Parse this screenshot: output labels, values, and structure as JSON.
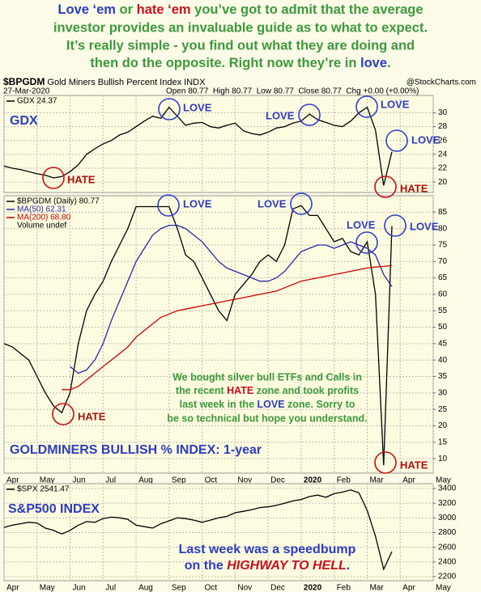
{
  "header": {
    "lines": [
      [
        "Love ‘em",
        " or ",
        "hate ‘em",
        " you’ve got to admit that the average"
      ],
      [
        "investor provides an invaluable guide as to what to expect."
      ],
      [
        "It’s really simple - you find out what they are doing and"
      ],
      [
        "then do the opposite. Right now they’re in ",
        "love",
        "."
      ]
    ]
  },
  "info": {
    "symbol": "$BPGDM",
    "name": "Gold Miners Bullish Percent Index INDX",
    "date": "27-Mar-2020",
    "quote": "Open 80.77  High 80.77  Low 80.77  Close 80.77  Chg +0.00 (+0.00%)",
    "source": "@StockCharts.com"
  },
  "chart_data": [
    {
      "type": "line",
      "categories": [
        "Apr",
        null,
        null,
        null,
        "May",
        null,
        null,
        null,
        "Jun",
        null,
        null,
        null,
        "Jul",
        null,
        null,
        null,
        "Aug",
        null,
        null,
        null,
        "Sep",
        null,
        null,
        null,
        "Oct",
        null,
        null,
        null,
        "Nov",
        null,
        null,
        null,
        "Dec",
        null,
        null,
        null,
        "2020",
        null,
        null,
        null,
        "Feb",
        null,
        null,
        null,
        "Mar",
        null,
        null,
        null,
        "Apr",
        null,
        null,
        null,
        "May"
      ],
      "series": [
        {
          "name": "GDX 24.37",
          "color": "#000000",
          "values": [
            22.3,
            22.0,
            21.8,
            21.5,
            21.2,
            21.0,
            20.6,
            20.8,
            21.5,
            22.5,
            24.0,
            24.8,
            25.5,
            26.0,
            26.8,
            27.2,
            28.0,
            28.8,
            29.5,
            29.2,
            30.8,
            29.5,
            28.2,
            28.5,
            28.6,
            28.0,
            27.8,
            28.2,
            28.5,
            27.4,
            27.0,
            26.8,
            27.2,
            27.8,
            28.0,
            28.5,
            28.8,
            29.8,
            29.0,
            28.6,
            28.2,
            28.0,
            28.8,
            30.0,
            30.8,
            27.5,
            19.5,
            24.37,
            null,
            null,
            null,
            null,
            null
          ]
        }
      ],
      "ylim": [
        18.5,
        32.5
      ],
      "yticks": [
        20,
        22,
        24,
        26,
        28,
        30
      ],
      "grid": true,
      "annotations": [
        "GDX",
        "LOVE",
        "LOVE",
        "LOVE",
        "LOVE",
        "HATE",
        "HATE"
      ]
    },
    {
      "type": "line",
      "categories": [
        "Apr",
        null,
        null,
        null,
        "May",
        null,
        null,
        null,
        "Jun",
        null,
        null,
        null,
        "Jul",
        null,
        null,
        null,
        "Aug",
        null,
        null,
        null,
        "Sep",
        null,
        null,
        null,
        "Oct",
        null,
        null,
        null,
        "Nov",
        null,
        null,
        null,
        "Dec",
        null,
        null,
        null,
        "2020",
        null,
        null,
        null,
        "Feb",
        null,
        null,
        null,
        "Mar",
        null,
        null,
        null,
        "Apr",
        null,
        null,
        null,
        "May"
      ],
      "series": [
        {
          "name": "$BPGDM (Daily) 80.77",
          "color": "#000000",
          "values": [
            45,
            44,
            42,
            40,
            35,
            30,
            26,
            24,
            30,
            45,
            55,
            60,
            64,
            70,
            75,
            80,
            86.67,
            86.67,
            86.67,
            86.67,
            86.67,
            80,
            72,
            70,
            65,
            60,
            55,
            52,
            60,
            63,
            66,
            70,
            72,
            70,
            75,
            86,
            87,
            84,
            84,
            80,
            76,
            77,
            73,
            72,
            76,
            60,
            8,
            80.77,
            null,
            null,
            null,
            null,
            null
          ]
        },
        {
          "name": "MA(50) 62.31",
          "color": "#2a2aa8",
          "values": [
            null,
            null,
            null,
            null,
            null,
            null,
            null,
            null,
            38,
            36,
            37,
            40,
            45,
            52,
            58,
            64,
            70,
            74,
            78,
            80,
            81,
            81,
            80,
            78,
            76,
            73,
            70,
            68,
            67,
            66,
            65,
            64,
            64,
            65,
            67,
            70,
            73,
            74,
            75,
            75,
            74,
            75,
            76,
            75,
            74,
            72,
            66,
            62.31,
            null,
            null,
            null,
            null,
            null
          ]
        },
        {
          "name": "MA(200) 68.80",
          "color": "#cc0000",
          "values": [
            null,
            null,
            null,
            null,
            null,
            null,
            null,
            31,
            31,
            32,
            34,
            36,
            38,
            40,
            42,
            44,
            47,
            49,
            51,
            53,
            54,
            55,
            55.5,
            56,
            56.5,
            57,
            57.5,
            58,
            58.5,
            59,
            59.5,
            60,
            60.5,
            61,
            62,
            63,
            64,
            64.5,
            65,
            65.5,
            66,
            66.5,
            67,
            67.5,
            68,
            68.3,
            68.5,
            68.8,
            null,
            null,
            null,
            null,
            null
          ]
        }
      ],
      "volume_label": "Volume undef",
      "ylim": [
        5.6,
        90
      ],
      "yticks": [
        10,
        15,
        20,
        25,
        30,
        35,
        40,
        45,
        50,
        55,
        60,
        65,
        70,
        75,
        80,
        85
      ],
      "grid": true,
      "annotations": [
        "GOLDMINERS BULLISH % INDEX: 1-year",
        "LOVE",
        "LOVE",
        "LOVE",
        "LOVE",
        "HATE",
        "HATE"
      ],
      "note": [
        [
          "We bought silver bull ETFs and Calls in"
        ],
        [
          "the recent ",
          "HATE",
          " zone and took profits"
        ],
        [
          "last week in the ",
          "LOVE",
          " zone. Sorry to"
        ],
        [
          "be so technical but hope you understand."
        ]
      ]
    },
    {
      "type": "line",
      "categories": [
        "Apr",
        null,
        null,
        null,
        "May",
        null,
        null,
        null,
        "Jun",
        null,
        null,
        null,
        "Jul",
        null,
        null,
        null,
        "Aug",
        null,
        null,
        null,
        "Sep",
        null,
        null,
        null,
        "Oct",
        null,
        null,
        null,
        "Nov",
        null,
        null,
        null,
        "Dec",
        null,
        null,
        null,
        "2020",
        null,
        null,
        null,
        "Feb",
        null,
        null,
        null,
        "Mar",
        null,
        null,
        null,
        "Apr",
        null,
        null,
        null,
        "May"
      ],
      "series": [
        {
          "name": "$SPX 2541.47",
          "color": "#000000",
          "values": [
            2870,
            2900,
            2920,
            2940,
            2930,
            2860,
            2830,
            2780,
            2830,
            2900,
            2950,
            2940,
            2990,
            3010,
            3000,
            2980,
            2900,
            2880,
            2860,
            2920,
            2960,
            3000,
            2990,
            2970,
            2940,
            2970,
            3000,
            3020,
            3070,
            3090,
            3110,
            3140,
            3150,
            3170,
            3200,
            3230,
            3250,
            3290,
            3310,
            3280,
            3330,
            3350,
            3380,
            3340,
            3100,
            2750,
            2300,
            2541.47,
            null,
            null,
            null,
            null,
            null
          ]
        }
      ],
      "ylim": [
        2145,
        3466
      ],
      "yticks": [
        2200,
        2400,
        2600,
        2800,
        3000,
        3200,
        3400
      ],
      "grid": true,
      "annotations": [
        "S&P500 INDEX"
      ],
      "note": [
        [
          "Last week was a speedbump"
        ],
        [
          "on the ",
          "HIGHWAY TO HELL",
          "."
        ]
      ]
    }
  ]
}
